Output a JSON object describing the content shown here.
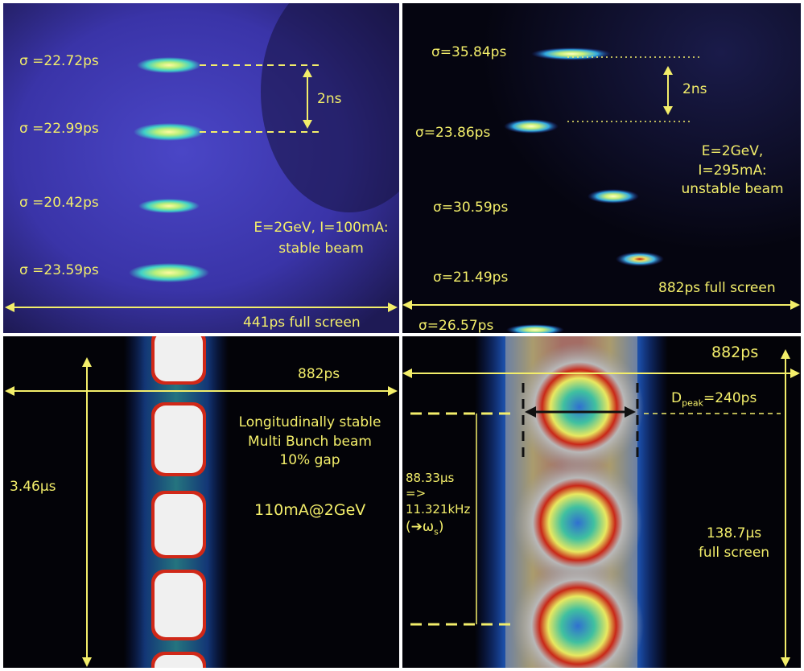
{
  "panels": {
    "top_left": {
      "sigmas": [
        "σ =22.72ps",
        "σ =22.99ps",
        "σ =20.42ps",
        "σ =23.59ps"
      ],
      "spacing": "2ns",
      "condition_line1": "E=2GeV, I=100mA:",
      "condition_line2": "stable beam",
      "scale": "441ps full screen"
    },
    "top_right": {
      "sigmas": [
        "σ=35.84ps",
        "σ=23.86ps",
        "σ=30.59ps",
        "σ=21.49ps",
        "σ=26.57ps"
      ],
      "spacing": "2ns",
      "condition_line1": "E=2GeV,",
      "condition_line2": "I=295mA:",
      "condition_line3": "unstable beam",
      "scale": "882ps full screen"
    },
    "bottom_left": {
      "width_label": "882ps",
      "desc_line1": "Longitudinally stable",
      "desc_line2": "Multi Bunch beam",
      "desc_line3": "10% gap",
      "period": "3.46µs",
      "current": "110mA@2GeV"
    },
    "bottom_right": {
      "width_label": "882ps",
      "dpeak_main": "D",
      "dpeak_sub": "peak",
      "dpeak_value": "=240ps",
      "period_line1": "88.33µs",
      "period_line2": "=>",
      "period_line3": "11.321kHz",
      "synchrotron_prefix": "(➔ω",
      "synchrotron_sub": "s",
      "synchrotron_suffix": ")",
      "full_line1": "138.7µs",
      "full_line2": "full screen"
    }
  },
  "colors": {
    "label": "#f3ee6a",
    "tl_background": "#3a34a8",
    "dark_background": "#050510"
  }
}
